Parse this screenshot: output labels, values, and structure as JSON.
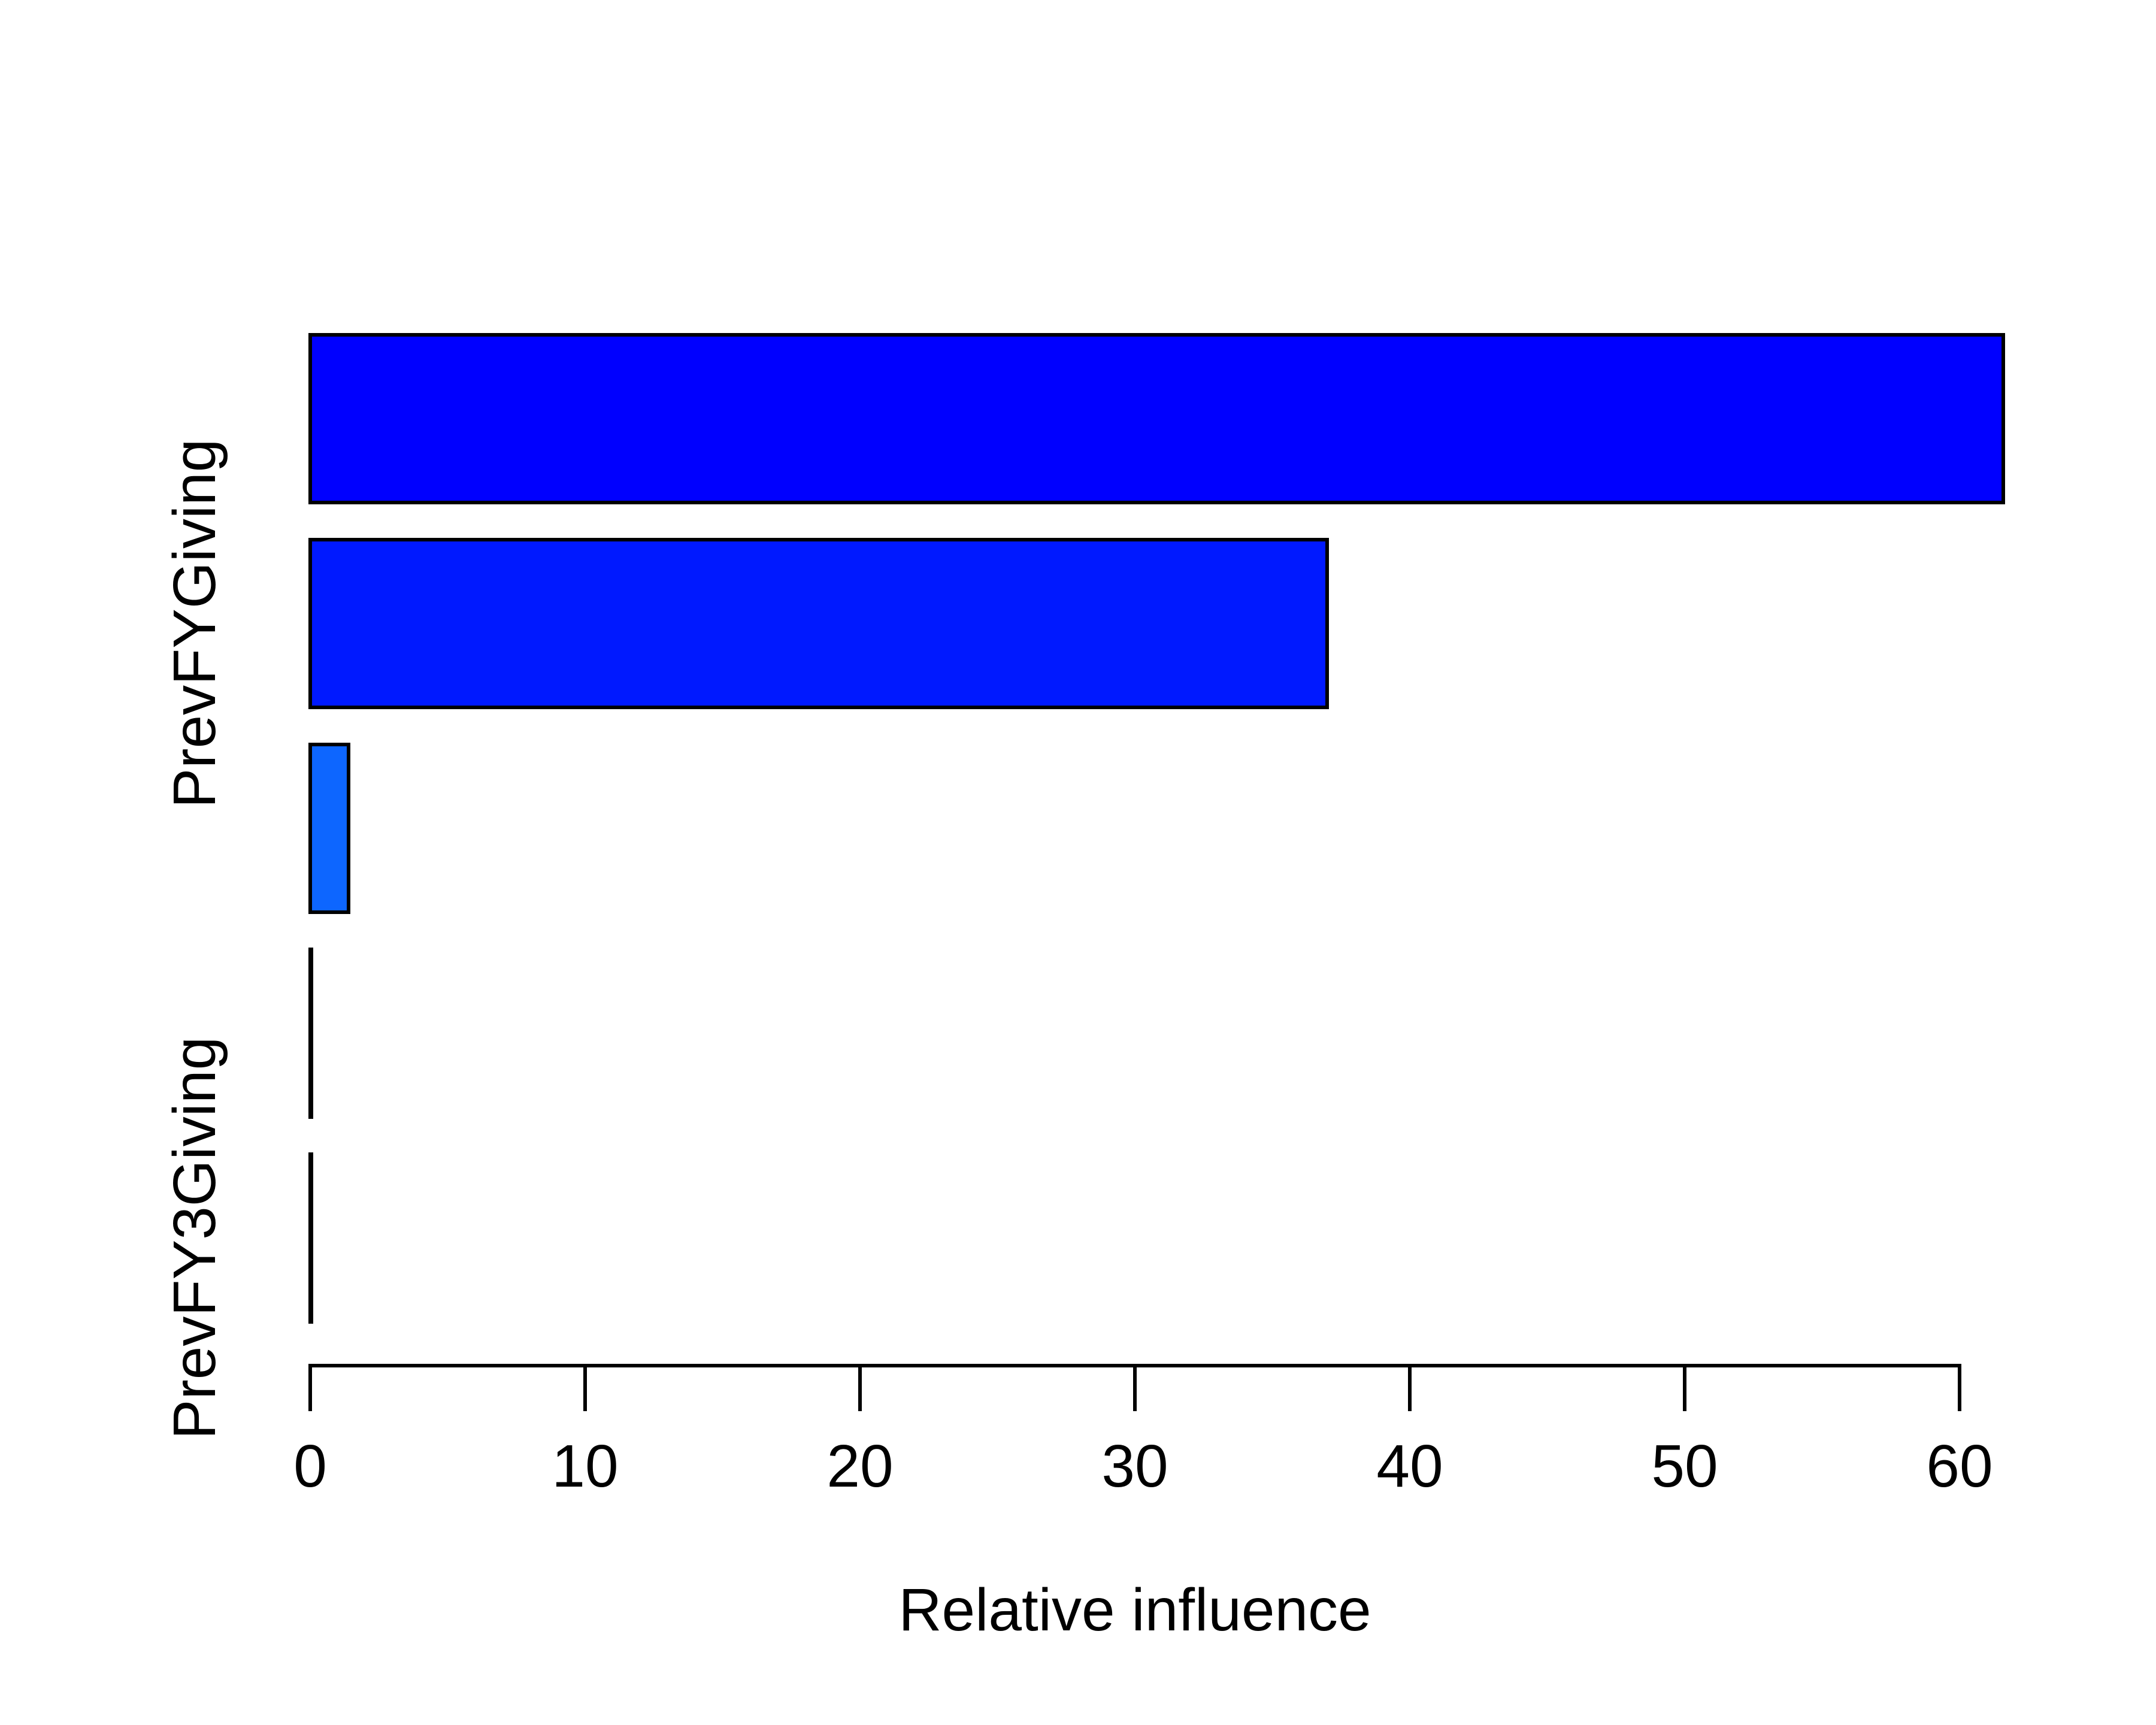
{
  "figure": {
    "background_color": "#ffffff",
    "text_color": "#000000"
  },
  "chart_data": {
    "type": "bar",
    "orientation": "horizontal",
    "title": "",
    "xlabel": "Relative influence",
    "ylabel": "",
    "xlim": [
      0,
      62
    ],
    "x_ticks": [
      0,
      10,
      20,
      30,
      40,
      50,
      60
    ],
    "grid": false,
    "legend_position": "none",
    "bar_border_color": "#000000",
    "axis_color": "#000000",
    "bars": [
      {
        "label": "",
        "value": 61.6,
        "color": "#0000ff"
      },
      {
        "label": "PrevFYGiving",
        "value": 37.0,
        "color": "#0019ff"
      },
      {
        "label": "",
        "value": 1.4,
        "color": "#0d66ff"
      },
      {
        "label": "",
        "value": 0.05,
        "color": "#0d66ff"
      },
      {
        "label": "PrevFY3Giving",
        "value": 0.03,
        "color": "#0d66ff"
      }
    ]
  }
}
